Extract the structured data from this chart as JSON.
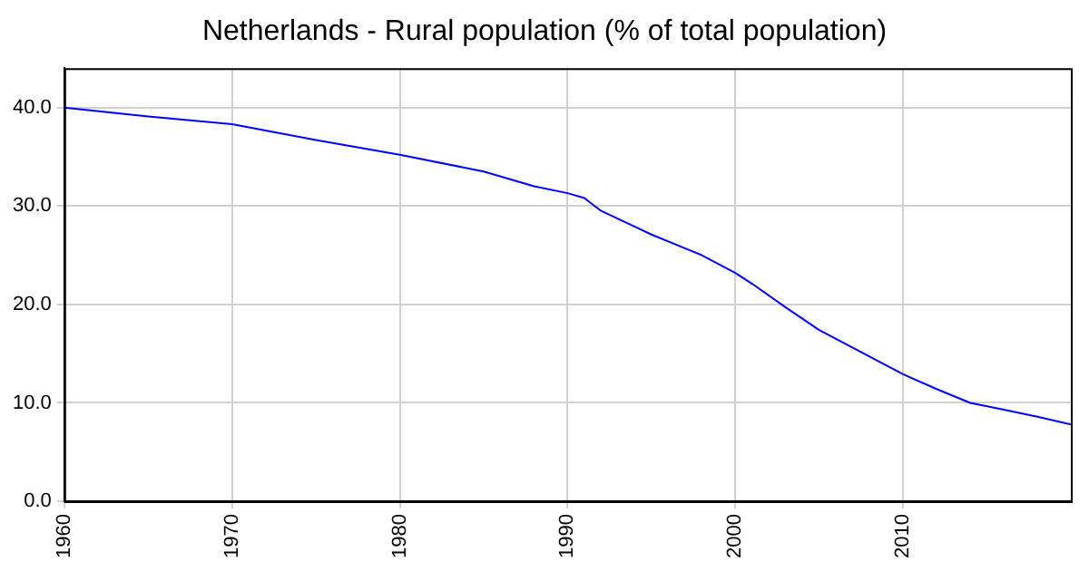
{
  "chart_data": {
    "type": "line",
    "title": "Netherlands - Rural population (% of total population)",
    "x": [
      1960,
      1965,
      1970,
      1975,
      1980,
      1985,
      1988,
      1990,
      1991,
      1992,
      1995,
      1998,
      2000,
      2001,
      2003,
      2005,
      2007,
      2010,
      2012,
      2014,
      2016,
      2018,
      2020
    ],
    "series": [
      {
        "color": "#0000ff",
        "values": [
          40.0,
          39.1,
          38.3,
          36.7,
          35.2,
          33.5,
          32.0,
          31.3,
          30.8,
          29.5,
          27.1,
          25.0,
          23.2,
          22.1,
          19.7,
          17.4,
          15.6,
          12.9,
          11.4,
          10.0,
          9.3,
          8.6,
          7.8
        ]
      }
    ],
    "xlim": [
      1960,
      2020
    ],
    "xticks": [
      1960,
      1970,
      1980,
      1990,
      2000,
      2010
    ],
    "ylim": [
      0,
      44
    ],
    "yticks": [
      {
        "value": 0,
        "label": "0.0"
      },
      {
        "value": 10,
        "label": "10.0"
      },
      {
        "value": 20,
        "label": "20.0"
      },
      {
        "value": 30,
        "label": "30.0"
      },
      {
        "value": 40,
        "label": "40.0"
      }
    ],
    "grid": true,
    "legend": false,
    "marker": "none",
    "line_style": "solid"
  }
}
